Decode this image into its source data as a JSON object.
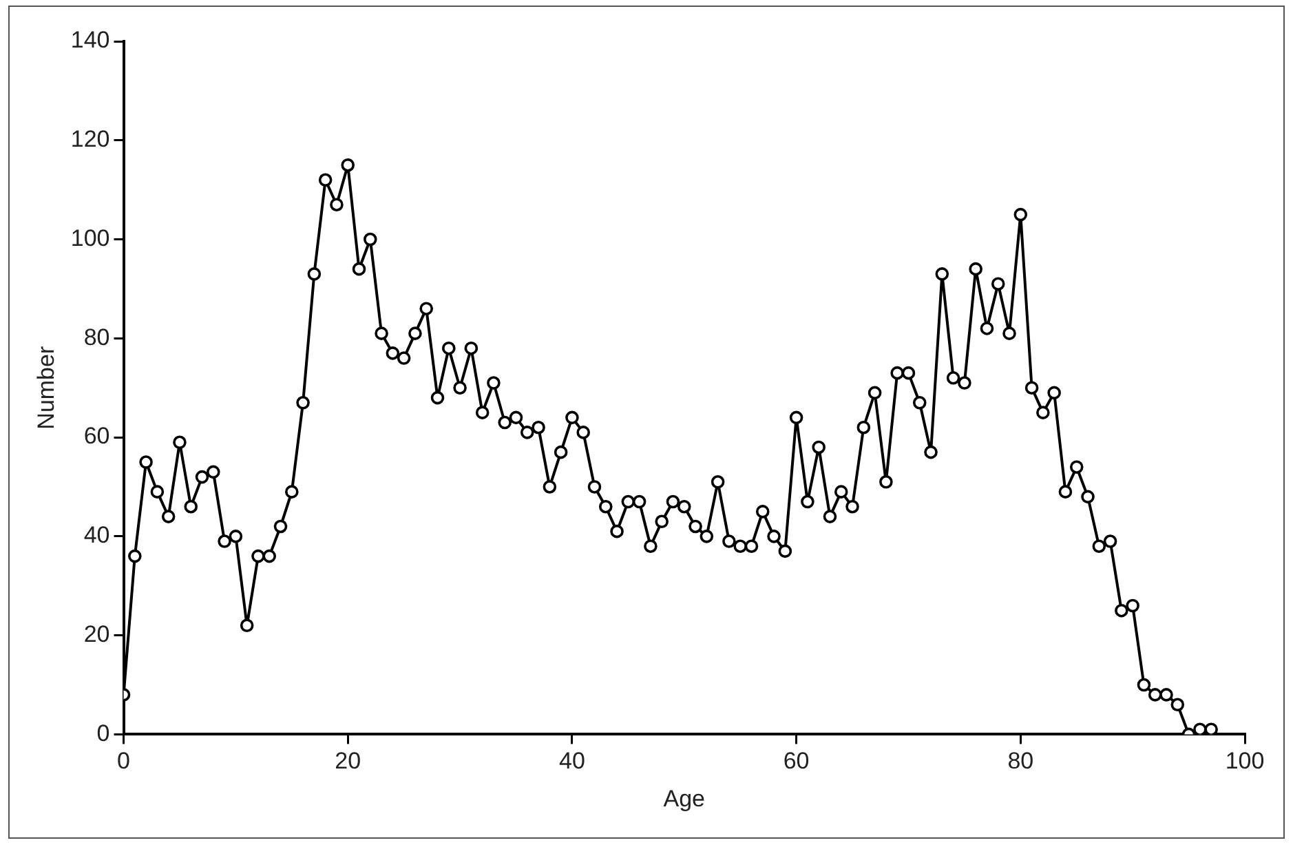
{
  "chart_data": {
    "type": "line",
    "xlabel": "Age",
    "ylabel": "Number",
    "x": [
      0,
      1,
      2,
      3,
      4,
      5,
      6,
      7,
      8,
      9,
      10,
      11,
      12,
      13,
      14,
      15,
      16,
      17,
      18,
      19,
      20,
      21,
      22,
      23,
      24,
      25,
      26,
      27,
      28,
      29,
      30,
      31,
      32,
      33,
      34,
      35,
      36,
      37,
      38,
      39,
      40,
      41,
      42,
      43,
      44,
      45,
      46,
      47,
      48,
      49,
      50,
      51,
      52,
      53,
      54,
      55,
      56,
      57,
      58,
      59,
      60,
      61,
      62,
      63,
      64,
      65,
      66,
      67,
      68,
      69,
      70,
      71,
      72,
      73,
      74,
      75,
      76,
      77,
      78,
      79,
      80,
      81,
      82,
      83,
      84,
      85,
      86,
      87,
      88,
      89,
      90,
      91,
      92,
      93,
      94,
      95,
      96,
      97
    ],
    "series": [
      {
        "color": "#000000",
        "values": [
          8,
          36,
          55,
          49,
          44,
          59,
          46,
          52,
          53,
          39,
          40,
          22,
          36,
          36,
          42,
          49,
          67,
          93,
          112,
          107,
          115,
          94,
          100,
          81,
          77,
          76,
          81,
          86,
          68,
          78,
          70,
          78,
          65,
          71,
          63,
          64,
          61,
          62,
          50,
          57,
          64,
          61,
          50,
          46,
          41,
          47,
          47,
          38,
          43,
          47,
          46,
          42,
          40,
          51,
          39,
          38,
          38,
          45,
          40,
          37,
          64,
          47,
          58,
          44,
          49,
          46,
          62,
          69,
          51,
          73,
          73,
          67,
          57,
          93,
          72,
          71,
          94,
          82,
          91,
          81,
          105,
          70,
          65,
          69,
          49,
          54,
          48,
          38,
          39,
          25,
          26,
          10,
          8,
          8,
          6,
          0,
          1,
          1
        ]
      }
    ],
    "xlim": [
      0,
      100
    ],
    "xticks": [
      0,
      20,
      40,
      60,
      80,
      100
    ],
    "ylim": [
      0,
      140
    ],
    "yticks": [
      0,
      20,
      40,
      60,
      80,
      100,
      120,
      140
    ],
    "grid": false,
    "legend": false,
    "marker": "circle",
    "line_style": "solid"
  }
}
